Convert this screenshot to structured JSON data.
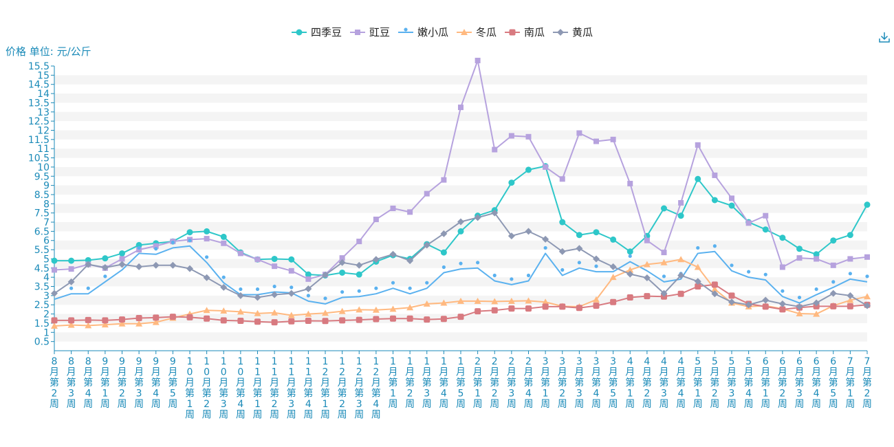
{
  "yaxis_unit_label": "价格 单位: 元/公斤",
  "toolbar": {
    "download_icon": "download-icon"
  },
  "colors": {
    "axis": "#1a8ab8",
    "grid_band": "#f4f4f4",
    "series": [
      "#2ec7c9",
      "#b6a2de",
      "#5ab1ef",
      "#ffb980",
      "#d87a80",
      "#8d98b3"
    ]
  },
  "chart_data": {
    "type": "line",
    "ylim": [
      0,
      15.5
    ],
    "yticks": [
      "0.5",
      "1",
      "1.5",
      "2",
      "2.5",
      "3",
      "3.5",
      "4",
      "4.5",
      "5",
      "5.5",
      "6",
      "6.5",
      "7",
      "7.5",
      "8",
      "8.5",
      "9",
      "9.5",
      "10",
      "10.5",
      "11",
      "11.5",
      "12",
      "12.5",
      "13",
      "13.5",
      "14",
      "14.5",
      "15",
      "15.5"
    ],
    "categories": [
      "8月第2周",
      "8月第3周",
      "8月第4周",
      "9月第1周",
      "9月第2周",
      "9月第3周",
      "9月第4周",
      "9月第5周",
      "10月第1周",
      "10月第2周",
      "10月第3周",
      "10月第4周",
      "11月第1周",
      "11月第2周",
      "11月第3周",
      "11月第4周",
      "12月第1周",
      "12月第2周",
      "12月第3周",
      "12月第4周",
      "1月第1周",
      "1月第2周",
      "1月第3周",
      "1月第4周",
      "1月第5周",
      "2月第1周",
      "2月第2周",
      "2月第3周",
      "2月第4周",
      "3月第1周",
      "3月第2周",
      "3月第3周",
      "3月第4周",
      "3月第5周",
      "4月第1周",
      "4月第2周",
      "4月第3周",
      "4月第4周",
      "5月第1周",
      "5月第2周",
      "5月第3周",
      "5月第4周",
      "6月第1周",
      "6月第2周",
      "6月第3周",
      "6月第4周",
      "6月第5周",
      "7月第1周",
      "7月第2周"
    ],
    "legend_position": "top-center",
    "grid": true,
    "series": [
      {
        "name": "四季豆",
        "marker": "circle",
        "values": [
          4.9,
          4.9,
          4.93,
          5.03,
          5.3,
          5.75,
          5.85,
          5.95,
          6.45,
          6.5,
          6.2,
          5.35,
          4.97,
          5.0,
          4.97,
          4.15,
          4.1,
          4.25,
          4.15,
          4.85,
          5.2,
          5.0,
          5.8,
          5.35,
          6.5,
          7.35,
          7.65,
          9.15,
          9.85,
          10.05,
          7.0,
          6.3,
          6.45,
          6.05,
          5.4,
          6.25,
          7.75,
          7.35,
          9.35,
          8.2,
          7.9,
          7.0,
          6.6,
          6.15,
          5.55,
          5.25,
          6.0,
          6.3,
          7.95
        ]
      },
      {
        "name": "豇豆",
        "marker": "square",
        "values": [
          4.4,
          4.45,
          4.7,
          4.5,
          5.0,
          5.5,
          5.7,
          5.95,
          6.05,
          6.1,
          5.85,
          5.3,
          4.97,
          4.6,
          4.35,
          3.9,
          4.15,
          5.05,
          5.95,
          7.15,
          7.75,
          7.55,
          8.55,
          9.3,
          13.25,
          15.8,
          10.95,
          11.7,
          11.65,
          10.0,
          9.35,
          11.85,
          11.4,
          11.5,
          9.1,
          6.0,
          5.35,
          8.05,
          11.2,
          9.55,
          8.3,
          6.95,
          7.35,
          4.55,
          5.05,
          5.0,
          4.65,
          5.0,
          5.1
        ]
      },
      {
        "name": "嫩小瓜",
        "marker": "pin",
        "values": [
          2.8,
          3.1,
          3.1,
          3.75,
          4.4,
          5.3,
          5.25,
          5.6,
          5.7,
          4.8,
          3.7,
          3.05,
          3.05,
          3.2,
          3.15,
          2.7,
          2.55,
          2.9,
          2.95,
          3.1,
          3.4,
          3.1,
          3.4,
          4.25,
          4.45,
          4.5,
          3.8,
          3.6,
          3.8,
          5.3,
          4.1,
          4.5,
          4.3,
          4.3,
          4.85,
          4.35,
          3.75,
          3.9,
          5.3,
          5.4,
          4.35,
          4.0,
          3.85,
          2.95,
          2.6,
          3.05,
          3.45,
          3.9,
          3.75
        ]
      },
      {
        "name": "冬瓜",
        "marker": "triangle",
        "values": [
          1.35,
          1.4,
          1.37,
          1.42,
          1.47,
          1.47,
          1.55,
          1.78,
          2.0,
          2.2,
          2.17,
          2.12,
          2.03,
          2.07,
          1.93,
          2.0,
          2.05,
          2.15,
          2.23,
          2.22,
          2.27,
          2.35,
          2.55,
          2.6,
          2.7,
          2.7,
          2.68,
          2.7,
          2.72,
          2.65,
          2.42,
          2.4,
          2.78,
          4.0,
          4.4,
          4.7,
          4.8,
          4.97,
          4.55,
          3.35,
          2.6,
          2.4,
          2.45,
          2.28,
          2.02,
          2.0,
          2.45,
          2.75,
          2.95
        ]
      },
      {
        "name": "南瓜",
        "marker": "roundsquare",
        "values": [
          1.65,
          1.65,
          1.67,
          1.65,
          1.7,
          1.78,
          1.8,
          1.85,
          1.82,
          1.75,
          1.65,
          1.63,
          1.58,
          1.55,
          1.6,
          1.63,
          1.62,
          1.65,
          1.68,
          1.72,
          1.75,
          1.75,
          1.7,
          1.73,
          1.85,
          2.15,
          2.2,
          2.3,
          2.3,
          2.4,
          2.4,
          2.33,
          2.45,
          2.65,
          2.9,
          2.97,
          2.95,
          3.1,
          3.5,
          3.6,
          3.0,
          2.55,
          2.4,
          2.25,
          2.35,
          2.42,
          2.42,
          2.42,
          2.5
        ]
      },
      {
        "name": "黄瓜",
        "marker": "diamond",
        "values": [
          3.12,
          3.75,
          4.7,
          4.53,
          4.7,
          4.57,
          4.65,
          4.65,
          4.47,
          3.98,
          3.45,
          3.0,
          2.9,
          3.05,
          3.12,
          3.37,
          4.13,
          4.8,
          4.65,
          4.97,
          5.25,
          4.9,
          5.75,
          6.37,
          7.02,
          7.25,
          7.5,
          6.25,
          6.5,
          6.07,
          5.4,
          5.57,
          5.0,
          4.57,
          4.17,
          3.97,
          3.12,
          4.1,
          3.77,
          3.1,
          2.65,
          2.5,
          2.75,
          2.55,
          2.4,
          2.6,
          3.12,
          3.0,
          2.45
        ]
      }
    ]
  }
}
